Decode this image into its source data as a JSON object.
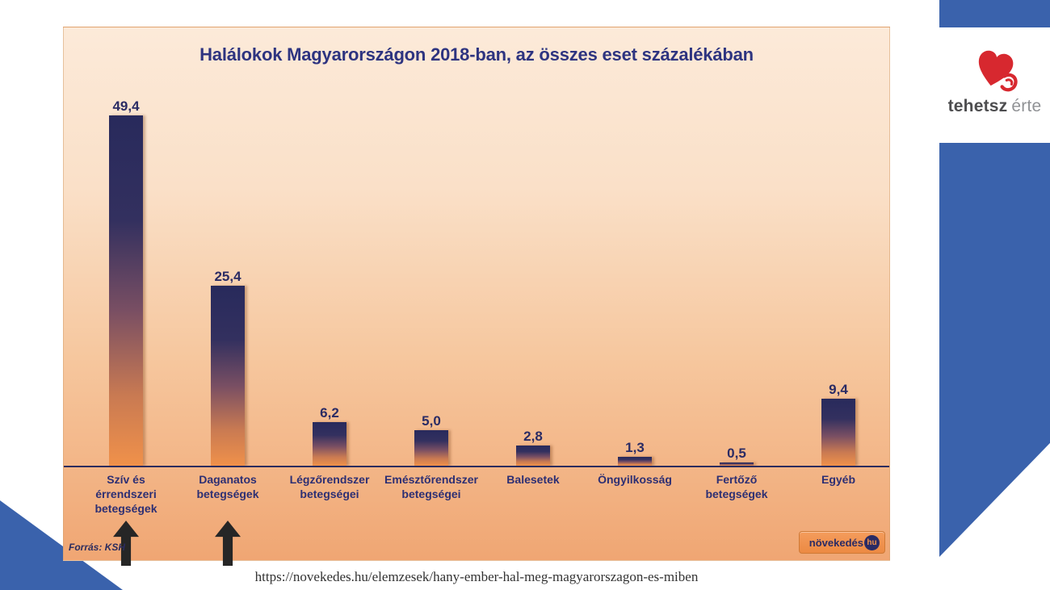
{
  "chart_data": {
    "type": "bar",
    "title": "Halálokok Magyarországon 2018-ban, az összes eset százalékában",
    "categories": [
      "Szív és\nérrendszeri\nbetegségek",
      "Daganatos\nbetegségek",
      "Légzőrendszer\nbetegségei",
      "Emésztőrendszer\nbetegségei",
      "Balesetek",
      "Öngyilkosság",
      "Fertőző\nbetegségek",
      "Egyéb"
    ],
    "values": [
      49.4,
      25.4,
      6.2,
      5.0,
      2.8,
      1.3,
      0.5,
      9.4
    ],
    "value_labels": [
      "49,4",
      "25,4",
      "6,2",
      "5,0",
      "2,8",
      "1,3",
      "0,5",
      "9,4"
    ],
    "unit": "% of all deaths",
    "ylim": [
      0,
      55
    ],
    "grid": false,
    "legend": false,
    "xlabel": "",
    "ylabel": "",
    "source": "Forrás: KSH",
    "annotations": {
      "arrow_up_under_categories": [
        0,
        1
      ]
    },
    "colors": {
      "bar_gradient_top": "#282a5c",
      "bar_gradient_bottom": "#f0914a",
      "label_navy": "#2a2b64",
      "panel_top": "#fcead9",
      "panel_bottom": "#f0a673",
      "axis": "#2b2c5e"
    }
  },
  "watermark": {
    "badge_text": "növekedés",
    "badge_suffix": "hu"
  },
  "brand": {
    "logo_bold": "tehetsz",
    "logo_light": "érte",
    "heart_color": "#d7282f",
    "accent_blue": "#3a62ac"
  },
  "page": {
    "url_caption": "https://novekedes.hu/elemzesek/hany-ember-hal-meg-magyarorszagon-es-miben"
  }
}
